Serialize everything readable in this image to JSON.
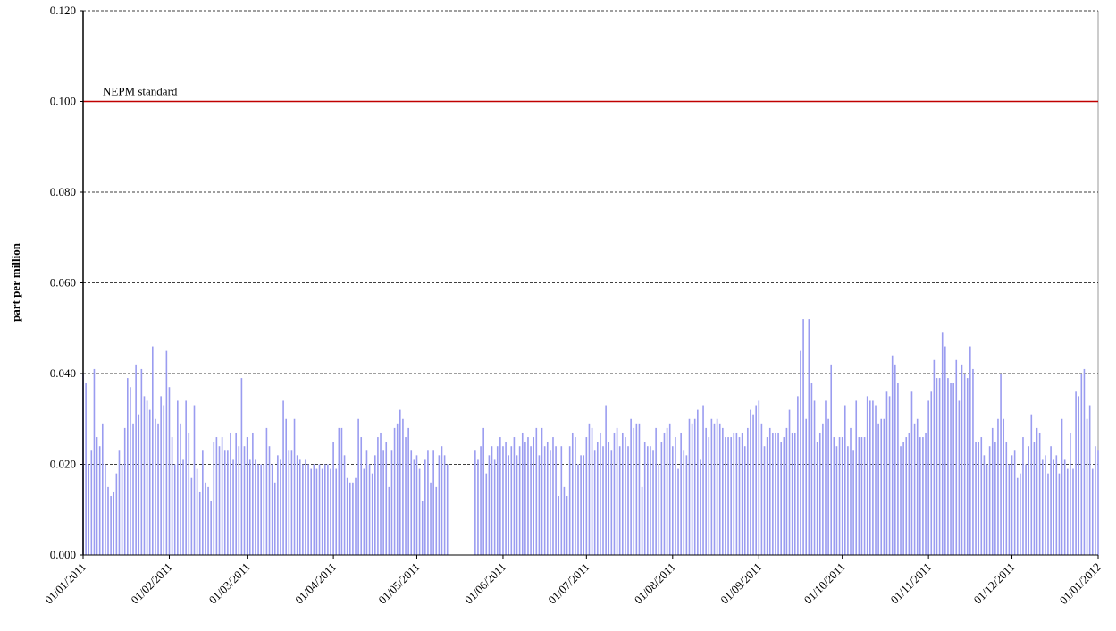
{
  "chart_data": {
    "type": "bar",
    "y_label": "part per million",
    "ylim": [
      0,
      0.12
    ],
    "yticks": [
      {
        "value": 0,
        "label": "0.000"
      },
      {
        "value": 0.02,
        "label": "0.020"
      },
      {
        "value": 0.04,
        "label": "0.040"
      },
      {
        "value": 0.06,
        "label": "0.060"
      },
      {
        "value": 0.08,
        "label": "0.080"
      },
      {
        "value": 0.1,
        "label": "0.100"
      },
      {
        "value": 0.12,
        "label": "0.120"
      }
    ],
    "grid": true,
    "color": "#9a9cf0",
    "reference_lines": [
      {
        "value": 0.1,
        "label": "NEPM standard",
        "color": "#c00000"
      }
    ],
    "categories": [
      "01/01/2011",
      null,
      null,
      null,
      null,
      null,
      null,
      null,
      null,
      null,
      null,
      null,
      null,
      null,
      null,
      null,
      null,
      null,
      null,
      null,
      null,
      null,
      null,
      null,
      null,
      null,
      null,
      null,
      null,
      null,
      null,
      "01/02/2011",
      null,
      null,
      null,
      null,
      null,
      null,
      null,
      null,
      null,
      null,
      null,
      null,
      null,
      null,
      null,
      null,
      null,
      null,
      null,
      null,
      null,
      null,
      null,
      null,
      null,
      null,
      null,
      "01/03/2011",
      null,
      null,
      null,
      null,
      null,
      null,
      null,
      null,
      null,
      null,
      null,
      null,
      null,
      null,
      null,
      null,
      null,
      null,
      null,
      null,
      null,
      null,
      null,
      null,
      null,
      null,
      null,
      null,
      null,
      null,
      "01/04/2011",
      null,
      null,
      null,
      null,
      null,
      null,
      null,
      null,
      null,
      null,
      null,
      null,
      null,
      null,
      null,
      null,
      null,
      null,
      null,
      null,
      null,
      null,
      null,
      null,
      null,
      null,
      null,
      null,
      null,
      "01/05/2011",
      null,
      null,
      null,
      null,
      null,
      null,
      null,
      null,
      null,
      null,
      null,
      null,
      null,
      null,
      null,
      null,
      null,
      null,
      null,
      null,
      null,
      null,
      null,
      null,
      null,
      null,
      null,
      null,
      null,
      null,
      "01/06/2011",
      null,
      null,
      null,
      null,
      null,
      null,
      null,
      null,
      null,
      null,
      null,
      null,
      null,
      null,
      null,
      null,
      null,
      null,
      null,
      null,
      null,
      null,
      null,
      null,
      null,
      null,
      null,
      null,
      null,
      "01/07/2011",
      null,
      null,
      null,
      null,
      null,
      null,
      null,
      null,
      null,
      null,
      null,
      null,
      null,
      null,
      null,
      null,
      null,
      null,
      null,
      null,
      null,
      null,
      null,
      null,
      null,
      null,
      null,
      null,
      null,
      null,
      "01/08/2011",
      null,
      null,
      null,
      null,
      null,
      null,
      null,
      null,
      null,
      null,
      null,
      null,
      null,
      null,
      null,
      null,
      null,
      null,
      null,
      null,
      null,
      null,
      null,
      null,
      null,
      null,
      null,
      null,
      null,
      null,
      "01/09/2011",
      null,
      null,
      null,
      null,
      null,
      null,
      null,
      null,
      null,
      null,
      null,
      null,
      null,
      null,
      null,
      null,
      null,
      null,
      null,
      null,
      null,
      null,
      null,
      null,
      null,
      null,
      null,
      null,
      null,
      "01/10/2011",
      null,
      null,
      null,
      null,
      null,
      null,
      null,
      null,
      null,
      null,
      null,
      null,
      null,
      null,
      null,
      null,
      null,
      null,
      null,
      null,
      null,
      null,
      null,
      null,
      null,
      null,
      null,
      null,
      null,
      null,
      "01/11/2011",
      null,
      null,
      null,
      null,
      null,
      null,
      null,
      null,
      null,
      null,
      null,
      null,
      null,
      null,
      null,
      null,
      null,
      null,
      null,
      null,
      null,
      null,
      null,
      null,
      null,
      null,
      null,
      null,
      null,
      "01/12/2011",
      null,
      null,
      null,
      null,
      null,
      null,
      null,
      null,
      null,
      null,
      null,
      null,
      null,
      null,
      null,
      null,
      null,
      null,
      null,
      null,
      null,
      null,
      null,
      null,
      null,
      null,
      null,
      null,
      null,
      null,
      "01/01/2012"
    ],
    "values": [
      0.04,
      0.038,
      0.02,
      0.023,
      0.041,
      0.026,
      0.024,
      0.029,
      0.02,
      0.015,
      0.013,
      0.014,
      0.018,
      0.023,
      0.02,
      0.028,
      0.039,
      0.037,
      0.029,
      0.042,
      0.031,
      0.041,
      0.035,
      0.034,
      0.032,
      0.046,
      0.03,
      0.029,
      0.035,
      0.033,
      0.045,
      0.037,
      0.026,
      0.02,
      0.034,
      0.029,
      0.021,
      0.034,
      0.027,
      0.017,
      0.033,
      0.019,
      0.014,
      0.023,
      0.016,
      0.015,
      0.012,
      0.025,
      0.026,
      0.024,
      0.026,
      0.023,
      0.023,
      0.027,
      0.021,
      0.027,
      0.024,
      0.039,
      0.024,
      0.026,
      0.021,
      0.027,
      0.021,
      0.02,
      0.02,
      0.02,
      0.028,
      0.024,
      0.02,
      0.016,
      0.022,
      0.021,
      0.034,
      0.03,
      0.023,
      0.023,
      0.03,
      0.022,
      0.021,
      0.02,
      0.021,
      0.02,
      0.019,
      0.02,
      0.019,
      0.02,
      0.019,
      0.02,
      0.02,
      0.019,
      0.025,
      0.019,
      0.028,
      0.028,
      0.022,
      0.017,
      0.016,
      0.016,
      0.017,
      0.03,
      0.026,
      0.019,
      0.023,
      0.02,
      0.018,
      0.022,
      0.026,
      0.027,
      0.023,
      0.025,
      0.015,
      0.023,
      0.028,
      0.029,
      0.032,
      0.03,
      0.026,
      0.028,
      0.023,
      0.021,
      0.022,
      0.019,
      0.012,
      0.021,
      0.023,
      0.016,
      0.023,
      0.015,
      0.022,
      0.024,
      0.022,
      0.02,
      null,
      null,
      null,
      null,
      null,
      null,
      null,
      null,
      null,
      0.023,
      0.021,
      0.024,
      0.028,
      0.018,
      0.022,
      0.024,
      0.021,
      0.024,
      0.026,
      0.024,
      0.025,
      0.022,
      0.024,
      0.026,
      0.022,
      0.024,
      0.027,
      0.025,
      0.026,
      0.024,
      0.026,
      0.028,
      0.022,
      0.028,
      0.024,
      0.025,
      0.023,
      0.026,
      0.024,
      0.013,
      0.024,
      0.015,
      0.013,
      0.024,
      0.027,
      0.026,
      0.02,
      0.022,
      0.022,
      0.026,
      0.029,
      0.028,
      0.023,
      0.025,
      0.027,
      0.024,
      0.033,
      0.025,
      0.023,
      0.027,
      0.028,
      0.024,
      0.027,
      0.026,
      0.024,
      0.03,
      0.028,
      0.029,
      0.029,
      0.015,
      0.025,
      0.024,
      0.024,
      0.023,
      0.028,
      0.02,
      0.025,
      0.027,
      0.028,
      0.029,
      0.024,
      0.026,
      0.019,
      0.027,
      0.023,
      0.022,
      0.03,
      0.029,
      0.03,
      0.032,
      0.021,
      0.033,
      0.028,
      0.026,
      0.03,
      0.029,
      0.03,
      0.029,
      0.028,
      0.026,
      0.026,
      0.026,
      0.027,
      0.027,
      0.026,
      0.027,
      0.024,
      0.028,
      0.032,
      0.031,
      0.033,
      0.034,
      0.029,
      0.024,
      0.026,
      0.028,
      0.027,
      0.027,
      0.027,
      0.025,
      0.026,
      0.028,
      0.032,
      0.027,
      0.027,
      0.035,
      0.045,
      0.052,
      0.03,
      0.052,
      0.038,
      0.034,
      0.025,
      0.027,
      0.029,
      0.034,
      0.03,
      0.042,
      0.026,
      0.024,
      0.026,
      0.026,
      0.033,
      0.024,
      0.028,
      0.023,
      0.034,
      0.026,
      0.026,
      0.026,
      0.035,
      0.034,
      0.034,
      0.033,
      0.029,
      0.03,
      0.03,
      0.036,
      0.035,
      0.044,
      0.042,
      0.038,
      0.024,
      0.025,
      0.026,
      0.027,
      0.036,
      0.029,
      0.03,
      0.026,
      0.026,
      0.027,
      0.034,
      0.036,
      0.043,
      0.039,
      0.039,
      0.049,
      0.046,
      0.039,
      0.038,
      0.038,
      0.043,
      0.034,
      0.042,
      0.04,
      0.039,
      0.046,
      0.041,
      0.025,
      0.025,
      0.026,
      0.022,
      0.02,
      0.024,
      0.028,
      0.025,
      0.03,
      0.04,
      0.03,
      0.025,
      0.02,
      0.022,
      0.023,
      0.017,
      0.018,
      0.026,
      0.02,
      0.024,
      0.031,
      0.025,
      0.028,
      0.027,
      0.021,
      0.022,
      0.018,
      0.024,
      0.021,
      0.022,
      0.018,
      0.03,
      0.021,
      0.019,
      0.027,
      0.019,
      0.036,
      0.035,
      0.04,
      0.041,
      0.03,
      0.033,
      0.019,
      0.024,
      0.023
    ]
  }
}
